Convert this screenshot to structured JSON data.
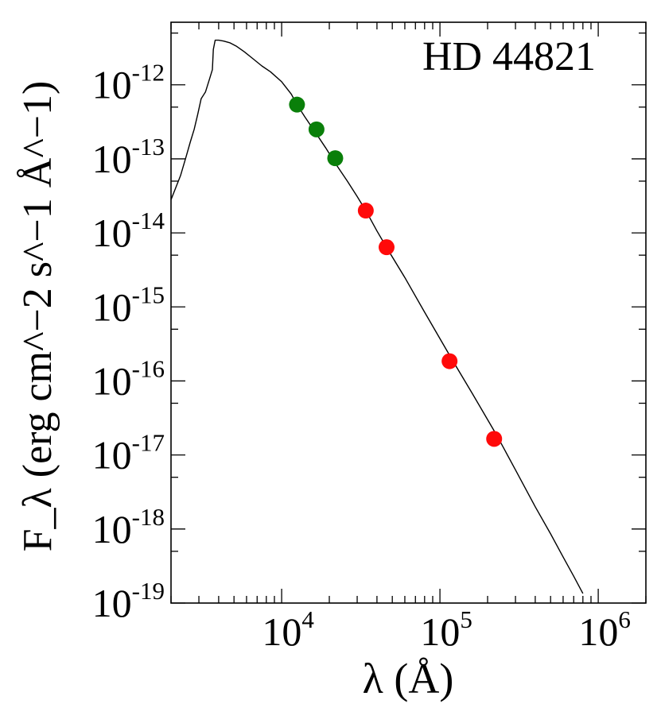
{
  "chart_data": {
    "type": "scatter",
    "title": "HD 44821",
    "xlabel": "λ (Å)",
    "ylabel": "F_λ (erg cm^−2 s^−1 Å^−1)",
    "x_scale": "log",
    "y_scale": "log",
    "xlim": [
      2000,
      2000000
    ],
    "ylim": [
      1e-19,
      7e-12
    ],
    "x_ticks": [
      {
        "base": "10",
        "exp": "4",
        "value": 10000
      },
      {
        "base": "10",
        "exp": "5",
        "value": 100000
      },
      {
        "base": "10",
        "exp": "6",
        "value": 1000000
      }
    ],
    "y_ticks": [
      {
        "base": "10",
        "exp": "-12",
        "value": 1e-12
      },
      {
        "base": "10",
        "exp": "-13",
        "value": 1e-13
      },
      {
        "base": "10",
        "exp": "-14",
        "value": 1e-14
      },
      {
        "base": "10",
        "exp": "-15",
        "value": 1e-15
      },
      {
        "base": "10",
        "exp": "-16",
        "value": 1e-16
      },
      {
        "base": "10",
        "exp": "-17",
        "value": 1e-17
      },
      {
        "base": "10",
        "exp": "-18",
        "value": 1e-18
      },
      {
        "base": "10",
        "exp": "-19",
        "value": 1e-19
      }
    ],
    "grid": false,
    "legend": "none",
    "model_curve": {
      "x": [
        2000,
        2300,
        2500,
        2650,
        2800,
        2950,
        3100,
        3300,
        3500,
        3650,
        3700,
        3800,
        4000,
        4300,
        4700,
        5200,
        5800,
        6500,
        7500,
        8500,
        10000,
        11500,
        12500,
        14000,
        16500,
        19000,
        22000,
        26000,
        30000,
        34000,
        40000,
        47000,
        60000,
        80000,
        120000,
        160000,
        230000,
        300000,
        400000,
        500000,
        600000,
        700000,
        800000
      ],
      "y": [
        2.8e-14,
        6e-14,
        1.1e-13,
        1.7e-13,
        2.5e-13,
        4e-13,
        6.5e-13,
        8e-13,
        1.2e-12,
        1.6e-12,
        3e-12,
        4e-12,
        4e-12,
        3.9e-12,
        3.7e-12,
        3.3e-12,
        2.8e-12,
        2.3e-12,
        1.8e-12,
        1.5e-12,
        1.1e-12,
        7.5e-13,
        5.4e-13,
        3.7e-13,
        2.2e-13,
        1.4e-13,
        8.5e-14,
        5e-14,
        3.1e-14,
        2e-14,
        1.06e-14,
        5.9e-15,
        2.5e-15,
        8.5e-16,
        1.9e-16,
        6.8e-17,
        1.8e-17,
        6.3e-18,
        2e-18,
        8.6e-19,
        4.2e-19,
        2.3e-19,
        1.35e-19
      ]
    },
    "series": [
      {
        "color": "#0a7f0a",
        "points": [
          {
            "x": 12500,
            "y": 5.4e-13
          },
          {
            "x": 16600,
            "y": 2.5e-13
          },
          {
            "x": 21800,
            "y": 1.02e-13
          }
        ]
      },
      {
        "color": "#ff0a0a",
        "points": [
          {
            "x": 34000,
            "y": 2e-14
          },
          {
            "x": 46000,
            "y": 6.4e-15
          },
          {
            "x": 115000,
            "y": 1.85e-16
          },
          {
            "x": 220000,
            "y": 1.65e-17
          }
        ]
      }
    ]
  }
}
